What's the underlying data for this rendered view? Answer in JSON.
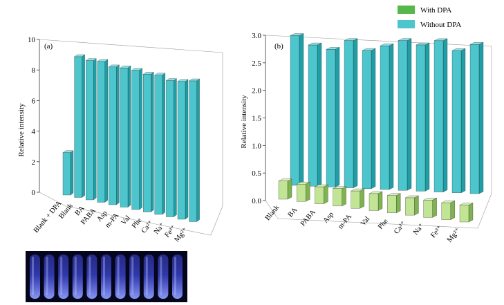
{
  "chart_data": [
    {
      "type": "bar",
      "panel_label": "(a)",
      "ylabel": "Relative intensity",
      "ylim": [
        0,
        10
      ],
      "yticks": [
        "0",
        "2",
        "4",
        "6",
        "8",
        "10"
      ],
      "categories": [
        "Blank + DPA",
        "Blank",
        "BA",
        "PABA",
        "Asp",
        "m-PA",
        "Val",
        "Phe",
        "Ca²⁺",
        "Na⁺",
        "Fe³⁺",
        "Mg²⁺"
      ],
      "series": [
        {
          "values": [
            2.8,
            9.3,
            9.2,
            9.3,
            9.1,
            9.2,
            9.2,
            9.1,
            9.2,
            9.0,
            9.1,
            9.3
          ]
        }
      ],
      "colors": {
        "front": "#4cc6cc",
        "top": "#8fe0e4",
        "side": "#1f9ea6"
      },
      "grid": false
    },
    {
      "type": "bar",
      "panel_label": "(b)",
      "ylabel": "Relative intensity",
      "ylim": [
        0,
        3.0
      ],
      "yticks": [
        "0.0",
        "0.5",
        "1.0",
        "1.5",
        "2.0",
        "2.5",
        "3.0"
      ],
      "categories": [
        "Blank",
        "BA",
        "PABA",
        "Asp",
        "m-PA",
        "Val",
        "Phe",
        "Ca²⁺",
        "Na⁺",
        "Fe³⁺",
        "Mg²⁺"
      ],
      "series": [
        {
          "name": "With DPA",
          "values": [
            0.44,
            0.42,
            0.41,
            0.42,
            0.42,
            0.41,
            0.42,
            0.42,
            0.42,
            0.41,
            0.41
          ]
        },
        {
          "name": "Without DPA",
          "values": [
            2.97,
            2.8,
            2.73,
            2.92,
            2.74,
            2.85,
            2.97,
            2.9,
            3.0,
            2.82,
            2.96
          ]
        }
      ],
      "colors": {
        "with_front": "#c2e595",
        "with_top": "#dcf2bc",
        "with_side": "#7fb251",
        "without_front": "#4cc6cc",
        "without_top": "#8fe0e4",
        "without_side": "#1f9ea6"
      },
      "legend_position": "top-right",
      "grid": false
    }
  ],
  "photo": {
    "tube_count": 11,
    "colors": {
      "background": "#05051c",
      "tube": "#3e48d8",
      "glow": "#8fa0ff"
    }
  }
}
